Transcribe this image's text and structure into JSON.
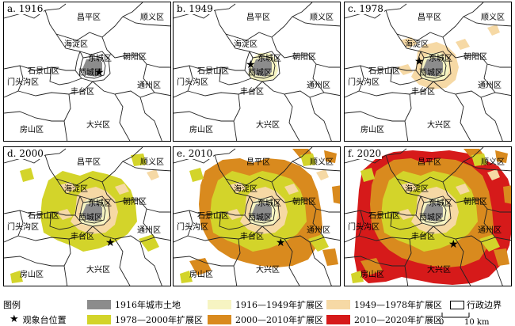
{
  "panels": [
    {
      "label": "a. 1916"
    },
    {
      "label": "b. 1949"
    },
    {
      "label": "c. 1978"
    },
    {
      "label": "d. 2000"
    },
    {
      "label": "e. 2010"
    },
    {
      "label": "f. 2020"
    }
  ],
  "districts": {
    "changping": "昌平区",
    "shunyi": "顺义区",
    "haidian": "海淀区",
    "chaoyang": "朝阳区",
    "dongcheng": "东城区",
    "xicheng": "西城区",
    "shijingshan": "石景山区",
    "mentougou": "门头沟区",
    "fengtai": "丰台区",
    "tongzhou": "通州区",
    "fangshan": "房山区",
    "daxing": "大兴区"
  },
  "legend": {
    "title": "图例",
    "items": [
      {
        "label": "1916年城市土地",
        "color": "#8c8c8c"
      },
      {
        "label": "1916—1949年扩展区",
        "color": "#f6f4c2"
      },
      {
        "label": "1949—1978年扩展区",
        "color": "#f6d9a5"
      },
      {
        "label": "1978—2000年扩展区",
        "color": "#d3d42a"
      },
      {
        "label": "2000—2010年扩展区",
        "color": "#d98a1e"
      },
      {
        "label": "2010—2020年扩展区",
        "color": "#d61a1a"
      }
    ],
    "observatory_label": "观象台位置",
    "boundary_label": "行政边界",
    "scale_zero": "0",
    "scale_ten": "10 km"
  }
}
